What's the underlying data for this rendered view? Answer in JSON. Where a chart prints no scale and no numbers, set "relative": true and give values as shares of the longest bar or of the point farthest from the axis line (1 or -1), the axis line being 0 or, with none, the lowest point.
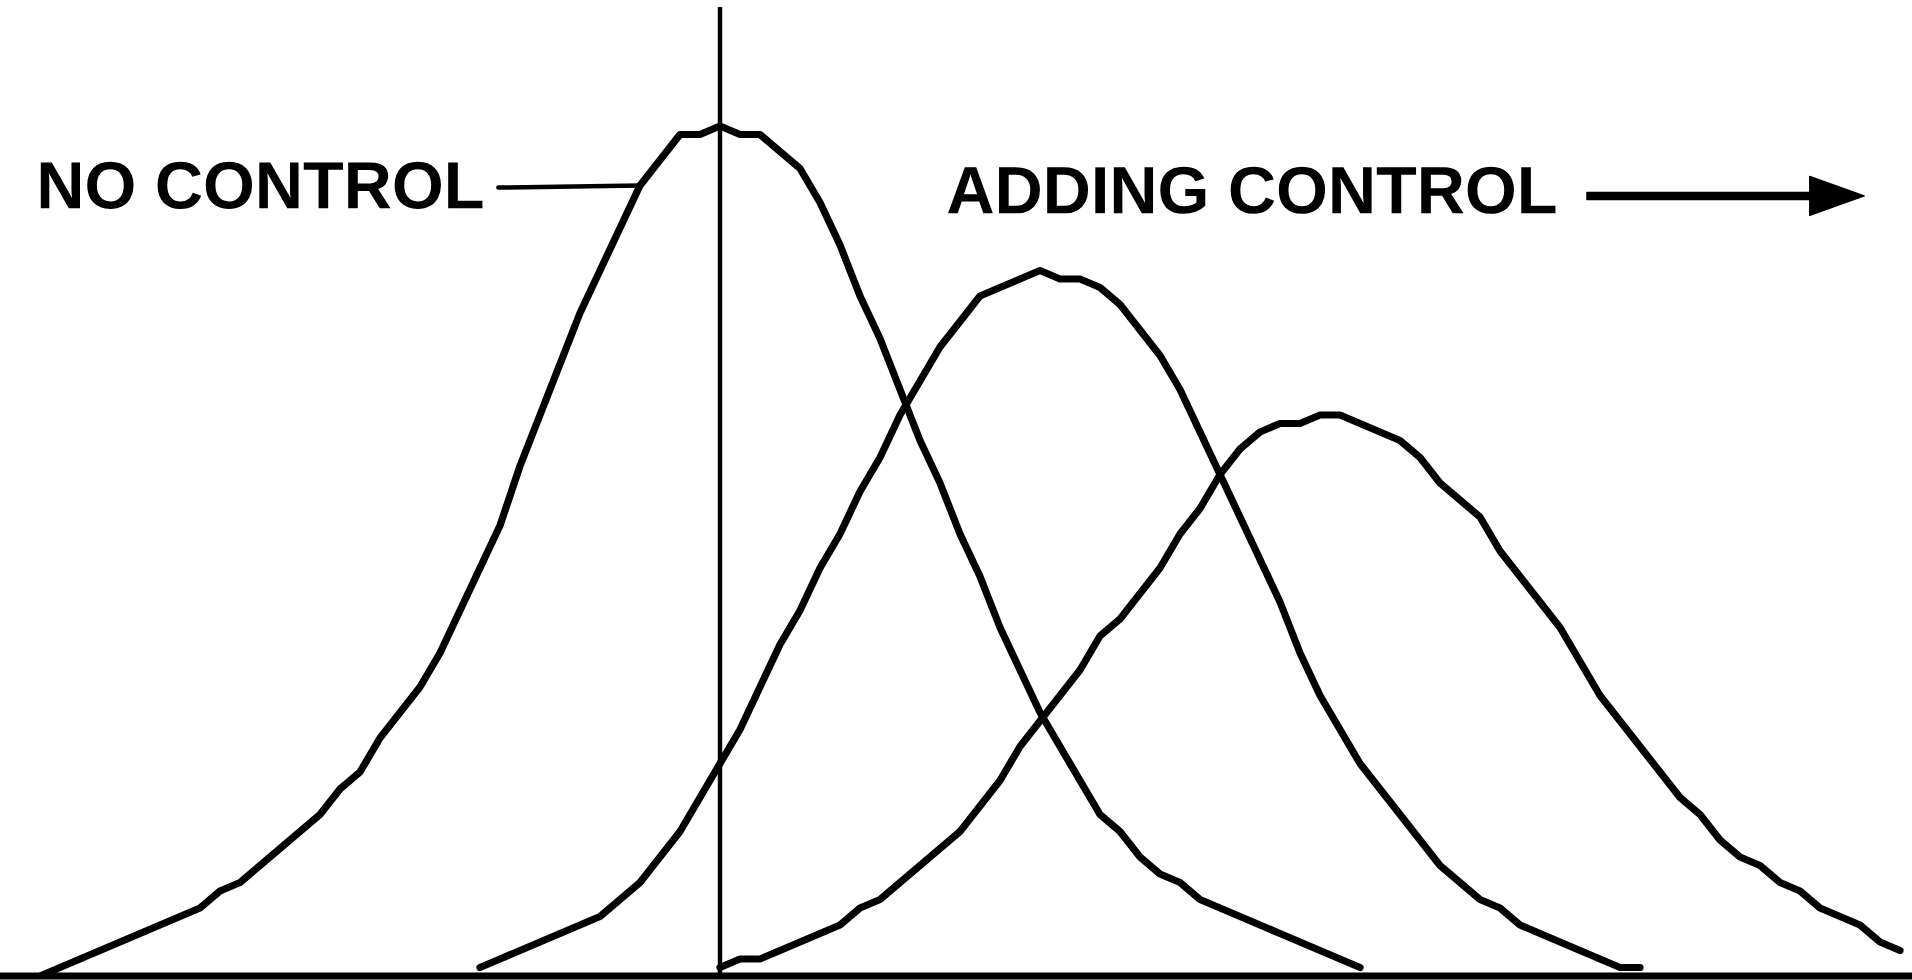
{
  "chart_data": {
    "type": "line",
    "relative": true,
    "tick_labels": false,
    "categories": [
      null,
      null,
      null,
      null,
      null,
      null,
      null,
      null,
      null,
      null,
      null,
      null,
      null,
      null,
      null,
      null,
      null,
      null,
      null,
      null,
      null,
      null,
      null,
      null,
      null,
      null,
      null,
      null,
      null,
      null,
      null,
      null,
      null,
      null,
      null,
      null,
      null,
      null,
      null,
      null,
      null,
      null,
      null,
      null,
      null,
      null,
      null,
      null,
      null,
      null,
      null,
      null,
      null,
      null,
      null,
      null,
      null,
      null,
      null,
      null,
      null,
      null,
      null,
      null,
      null,
      null,
      null,
      null,
      null,
      null,
      null,
      null,
      null,
      null,
      null,
      null,
      null,
      null,
      null,
      null,
      null,
      null,
      null,
      null,
      null,
      null,
      null,
      null,
      null,
      null,
      null,
      null,
      null,
      null,
      null,
      null
    ],
    "series": [
      {
        "name": "NO CONTROL",
        "color": "#000000",
        "values": [
          null,
          null,
          0.0,
          0.01,
          0.02,
          0.03,
          0.04,
          0.05,
          0.06,
          0.07,
          0.08,
          0.1,
          0.11,
          0.13,
          0.15,
          0.17,
          0.19,
          0.22,
          0.24,
          0.28,
          0.31,
          0.34,
          0.38,
          0.43,
          0.48,
          0.53,
          0.6,
          0.66,
          0.72,
          0.78,
          0.83,
          0.88,
          0.93,
          0.96,
          0.99,
          0.99,
          1.0,
          0.99,
          0.99,
          0.97,
          0.95,
          0.91,
          0.86,
          0.8,
          0.75,
          0.69,
          0.63,
          0.58,
          0.52,
          0.47,
          0.41,
          0.36,
          0.31,
          0.27,
          0.23,
          0.19,
          0.17,
          0.14,
          0.12,
          0.11,
          0.09,
          0.08,
          0.07,
          0.06,
          0.05,
          0.04,
          0.03,
          0.02,
          0.01,
          null,
          null,
          null,
          null,
          null,
          null,
          null,
          null,
          null,
          null,
          null,
          null,
          null,
          null,
          null,
          null,
          null,
          null,
          null,
          null,
          null,
          null,
          null,
          null,
          null,
          null,
          null
        ]
      },
      {
        "color": "#000000",
        "values": [
          null,
          null,
          null,
          null,
          null,
          null,
          null,
          null,
          null,
          null,
          null,
          null,
          null,
          null,
          null,
          null,
          null,
          null,
          null,
          null,
          null,
          null,
          null,
          null,
          0.01,
          0.02,
          0.03,
          0.04,
          0.05,
          0.06,
          0.07,
          0.09,
          0.11,
          0.14,
          0.17,
          0.21,
          0.25,
          0.29,
          0.34,
          0.39,
          0.43,
          0.48,
          0.52,
          0.57,
          0.61,
          0.66,
          0.7,
          0.74,
          0.77,
          0.8,
          0.81,
          0.82,
          0.83,
          0.82,
          0.82,
          0.81,
          0.79,
          0.76,
          0.73,
          0.69,
          0.64,
          0.59,
          0.54,
          0.49,
          0.44,
          0.38,
          0.33,
          0.29,
          0.25,
          0.22,
          0.19,
          0.16,
          0.13,
          0.11,
          0.09,
          0.08,
          0.06,
          0.05,
          0.04,
          0.03,
          0.02,
          0.01,
          0.01,
          null,
          null,
          null,
          null,
          null,
          null,
          null,
          null,
          null,
          null,
          null,
          null,
          null
        ]
      },
      {
        "color": "#000000",
        "values": [
          null,
          null,
          null,
          null,
          null,
          null,
          null,
          null,
          null,
          null,
          null,
          null,
          null,
          null,
          null,
          null,
          null,
          null,
          null,
          null,
          null,
          null,
          null,
          null,
          null,
          null,
          null,
          null,
          null,
          null,
          null,
          null,
          null,
          null,
          null,
          null,
          0.01,
          0.02,
          0.02,
          0.03,
          0.04,
          0.05,
          0.06,
          0.08,
          0.09,
          0.11,
          0.13,
          0.15,
          0.17,
          0.2,
          0.23,
          0.27,
          0.3,
          0.33,
          0.36,
          0.4,
          0.42,
          0.45,
          0.48,
          0.52,
          0.55,
          0.59,
          0.62,
          0.64,
          0.65,
          0.65,
          0.66,
          0.66,
          0.65,
          0.64,
          0.63,
          0.61,
          0.58,
          0.56,
          0.54,
          0.5,
          0.47,
          0.44,
          0.41,
          0.37,
          0.33,
          0.3,
          0.27,
          0.24,
          0.21,
          0.19,
          0.16,
          0.14,
          0.13,
          0.11,
          0.1,
          0.08,
          0.07,
          0.06,
          0.04,
          0.03
        ]
      }
    ],
    "annotations": [
      "ADDING CONTROL"
    ]
  }
}
